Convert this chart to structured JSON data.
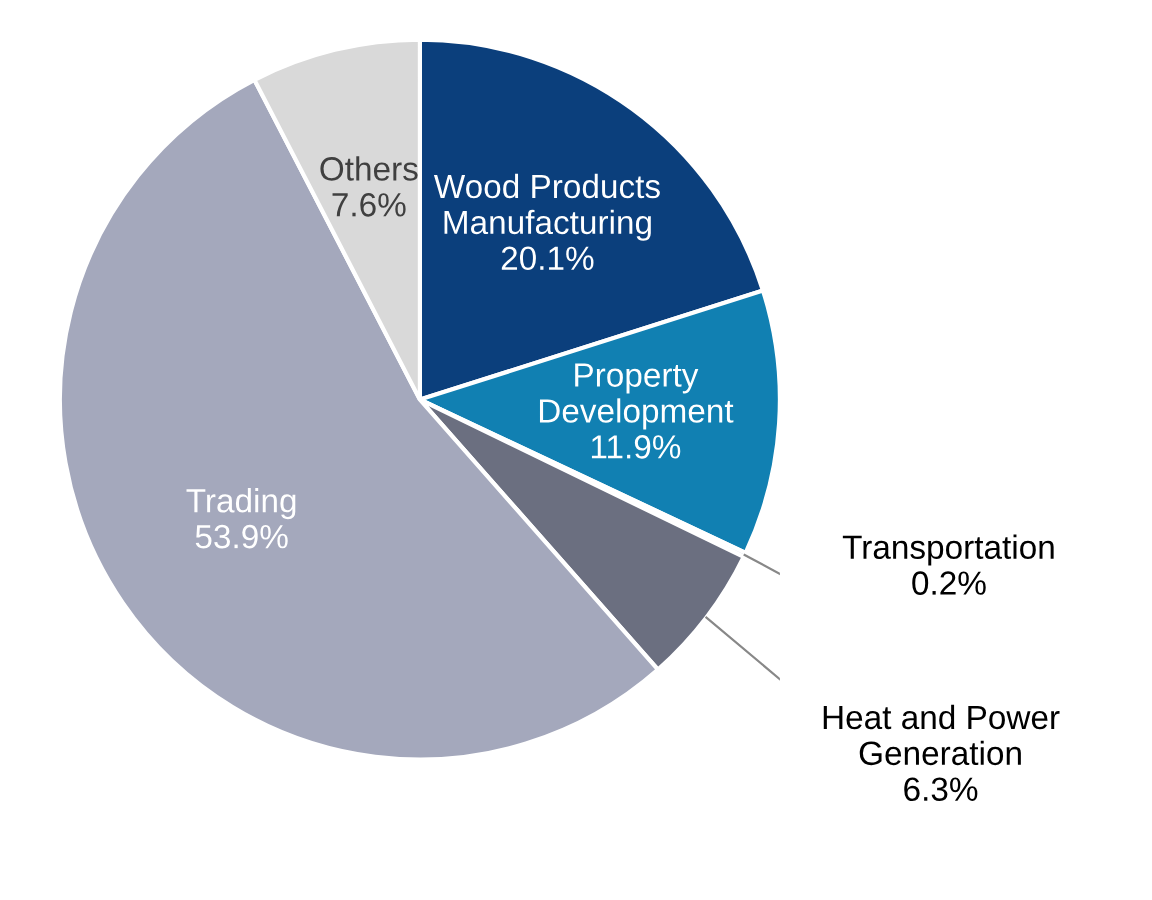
{
  "chart_data": {
    "type": "pie",
    "categories": [
      "Wood Products Manufacturing",
      "Property Development",
      "Transportation",
      "Heat and Power Generation",
      "Trading",
      "Others"
    ],
    "values": [
      20.1,
      11.9,
      0.2,
      6.3,
      53.9,
      7.6
    ],
    "colors": [
      "#0b3f7c",
      "#1180b2",
      "#c9d3df",
      "#6b6f80",
      "#a4a8bc",
      "#d9d9d9"
    ],
    "value_labels": [
      "20.1%",
      "11.9%",
      "0.2%",
      "6.3%",
      "53.9%",
      "7.6%"
    ]
  }
}
